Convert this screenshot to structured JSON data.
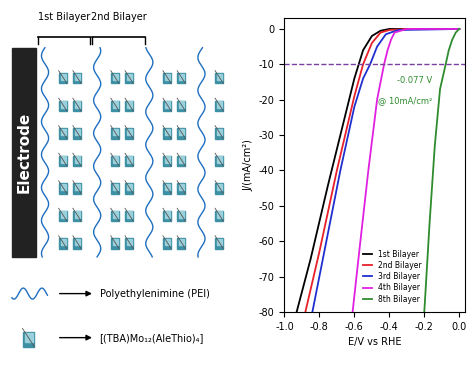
{
  "diagram": {
    "electrode": "Electrode",
    "layers": [
      "1st Bilayer",
      "2nd Bilayer"
    ],
    "key": [
      {
        "label": "Polyethylenimine (PEI)"
      },
      {
        "label": "[(TBA)Mo₁₂(AleThio)₄]"
      }
    ]
  },
  "chart_data": {
    "type": "line",
    "xlabel": "E/V vs RHE",
    "ylabel": "J/(mA/cm²)",
    "xlim": [
      -1.0,
      0.03
    ],
    "xticks": [
      -1.0,
      -0.8,
      -0.6,
      -0.4,
      -0.2,
      0.0
    ],
    "ylim": [
      -80,
      3
    ],
    "yticks": [
      0,
      -10,
      -20,
      -30,
      -40,
      -50,
      -60,
      -70,
      -80
    ],
    "grid": false,
    "legend": "lower center",
    "reference_line": -10,
    "annotations": [
      "-0.077 V",
      "@ 10mA/cm²"
    ],
    "series": [
      {
        "name": "1st Bilayer",
        "color": "#000000",
        "line_style": "solid",
        "x": [
          -0.93,
          -0.85,
          -0.75,
          -0.65,
          -0.6,
          -0.55,
          -0.5,
          -0.45,
          -0.4,
          -0.3,
          -0.1,
          0.0
        ],
        "values": [
          -80,
          -65,
          -44,
          -24,
          -14,
          -6,
          -2,
          -0.5,
          0,
          0,
          0,
          0
        ]
      },
      {
        "name": "2nd Bilayer",
        "color": "#e8202a",
        "line_style": "solid",
        "x": [
          -0.88,
          -0.8,
          -0.7,
          -0.6,
          -0.55,
          -0.5,
          -0.45,
          -0.4,
          -0.3,
          0.0
        ],
        "values": [
          -80,
          -63,
          -40,
          -19,
          -10,
          -4,
          -1,
          -0.3,
          0,
          0
        ]
      },
      {
        "name": "3rd Bilayer",
        "color": "#1f2fd0",
        "line_style": "solid",
        "x": [
          -0.84,
          -0.76,
          -0.68,
          -0.6,
          -0.55,
          -0.51,
          -0.47,
          -0.42,
          -0.35,
          0.0
        ],
        "values": [
          -80,
          -60,
          -40,
          -22,
          -14,
          -10,
          -5,
          -1.5,
          -0.3,
          0
        ]
      },
      {
        "name": "4th Bilayer",
        "color": "#e020e0",
        "line_style": "solid",
        "x": [
          -0.61,
          -0.57,
          -0.52,
          -0.47,
          -0.43,
          -0.41,
          -0.39,
          -0.37,
          -0.3,
          0.0
        ],
        "values": [
          -80,
          -62,
          -40,
          -20,
          -10,
          -6,
          -3,
          -1,
          0,
          0
        ]
      },
      {
        "name": "8th Bilayer",
        "color": "#2e8b2e",
        "line_style": "solid",
        "x": [
          -0.2,
          -0.17,
          -0.14,
          -0.11,
          -0.08,
          -0.06,
          -0.04,
          -0.02,
          0.0
        ],
        "values": [
          -80,
          -55,
          -33,
          -17,
          -10.5,
          -6,
          -3,
          -1,
          0
        ]
      }
    ]
  }
}
